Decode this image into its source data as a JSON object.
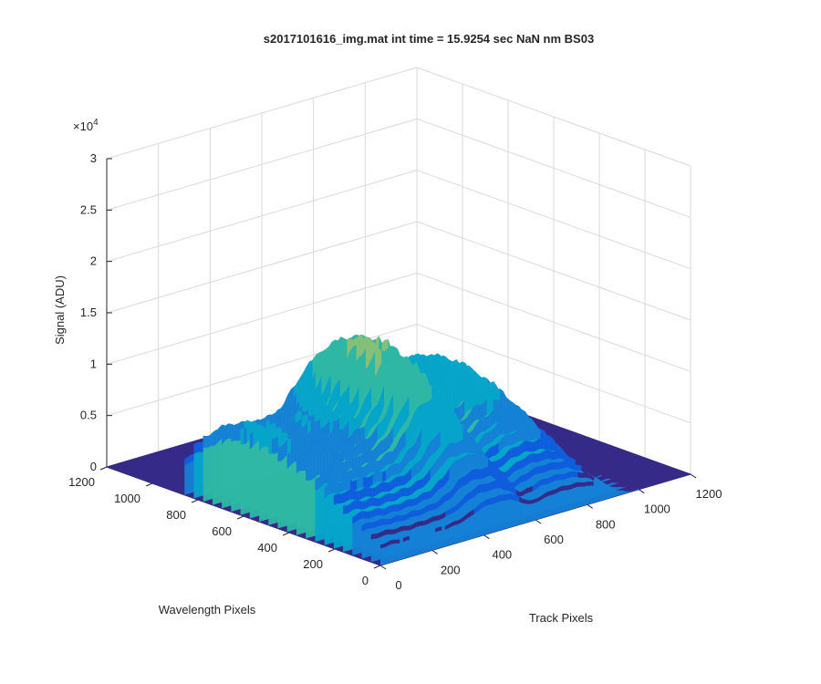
{
  "chart_data": {
    "type": "surface",
    "title": "s2017101616_img.mat int time = 15.9254 sec  NaN nm BS03",
    "xlabel": "Track Pixels",
    "ylabel": "Wavelength Pixels",
    "zlabel": "Signal (ADU)",
    "xlim": [
      0,
      1200
    ],
    "ylim": [
      0,
      1200
    ],
    "zlim": [
      0,
      30000
    ],
    "x_ticks": [
      "0",
      "200",
      "400",
      "600",
      "800",
      "1000",
      "1200"
    ],
    "y_ticks": [
      "0",
      "200",
      "400",
      "600",
      "800",
      "1000",
      "1200"
    ],
    "z_ticks": [
      "0",
      "0.5",
      "1",
      "1.5",
      "2",
      "2.5",
      "3"
    ],
    "z_exponent": "×10",
    "z_exponent_power": "4",
    "grid": true,
    "colormap": "parula",
    "colors": [
      "#352a87",
      "#0f5cdd",
      "#1481d6",
      "#06a4ca",
      "#2eb7a4",
      "#87bf77",
      "#d1bb59",
      "#fec832",
      "#f9fb0e"
    ],
    "signal_region": {
      "track_range": [
        0,
        1000
      ],
      "wavelength_range": [
        0,
        900
      ]
    },
    "track_profile": {
      "x": [
        0,
        40,
        80,
        150,
        250,
        300,
        350,
        380,
        420,
        500,
        550,
        580,
        620,
        660,
        700,
        760,
        800,
        850,
        900,
        950,
        1000
      ],
      "z": [
        13000,
        13500,
        13000,
        12500,
        13000,
        14000,
        17000,
        20000,
        22000,
        21500,
        16000,
        12500,
        14000,
        15500,
        16000,
        15500,
        14500,
        11000,
        5000,
        1000,
        0
      ]
    }
  }
}
